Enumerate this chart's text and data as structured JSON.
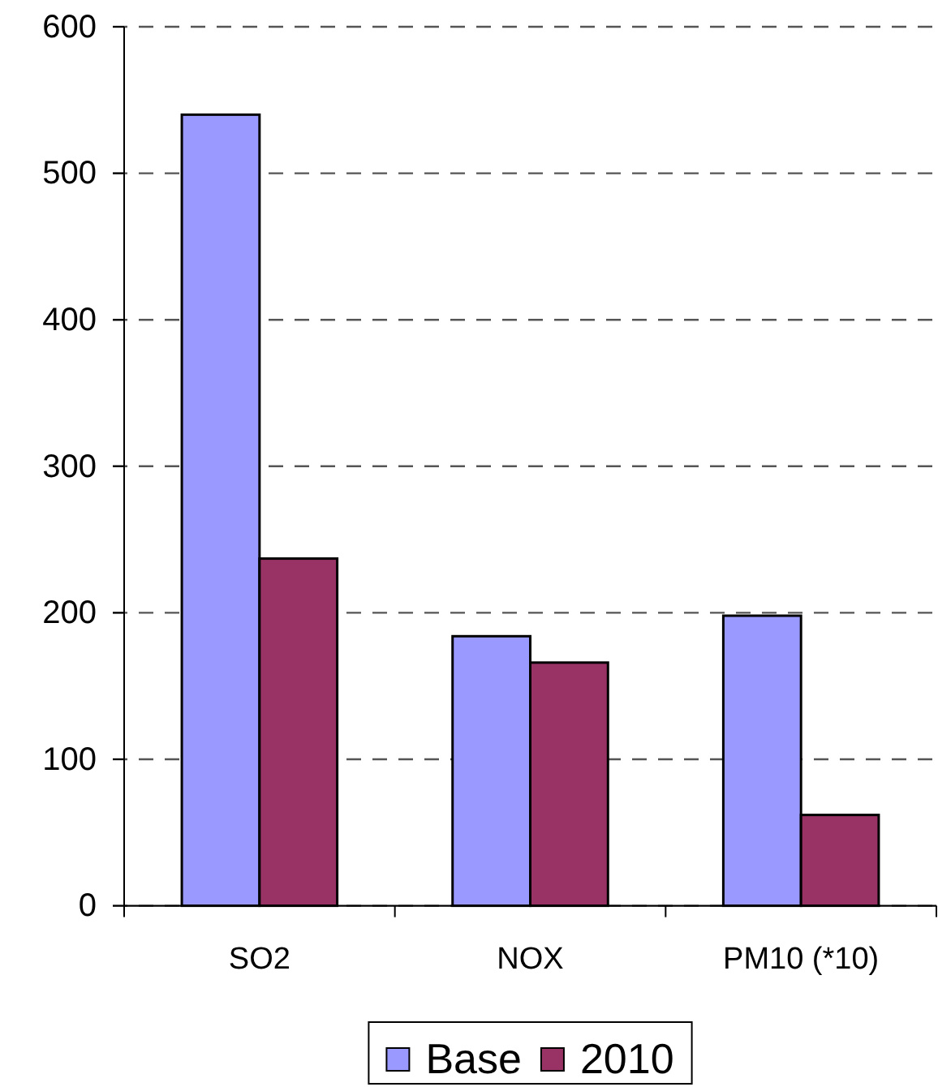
{
  "chart_data": {
    "type": "bar",
    "categories": [
      "SO2",
      "NOX",
      "PM10 (*10)"
    ],
    "series": [
      {
        "name": "Base",
        "color": "#9999ff",
        "values": [
          540,
          184,
          198
        ]
      },
      {
        "name": "2010",
        "color": "#993366",
        "values": [
          237,
          166,
          62
        ]
      }
    ],
    "ylim": [
      0,
      600
    ],
    "yticks": [
      0,
      100,
      200,
      300,
      400,
      500,
      600
    ],
    "grid": "y",
    "legend": "bottom"
  }
}
